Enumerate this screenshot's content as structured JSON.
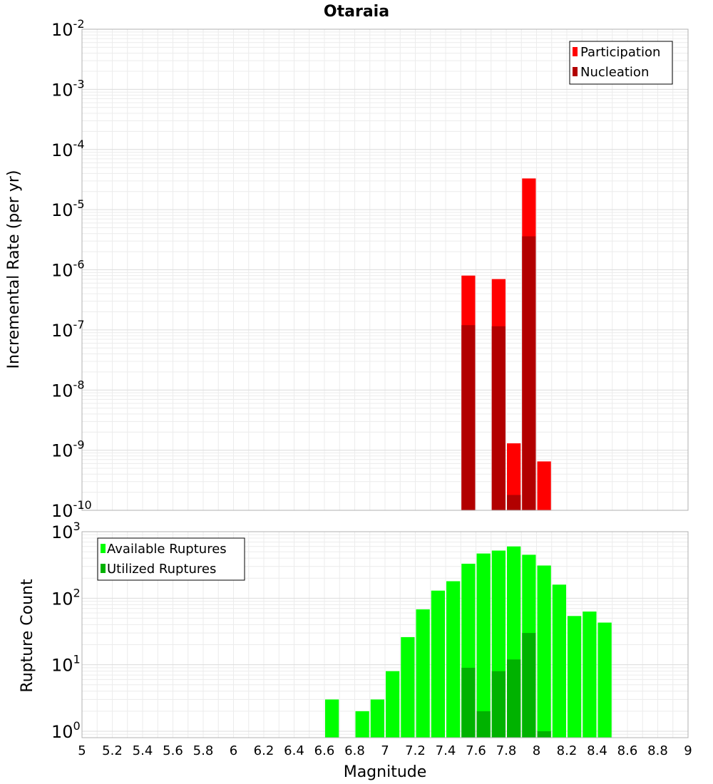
{
  "chart_data": [
    {
      "type": "bar",
      "title": "Otaraia",
      "ylabel": "Incremental Rate (per yr)",
      "xlabel": "",
      "yscale": "log",
      "ylim": [
        1e-10,
        0.01
      ],
      "xlim": [
        5,
        9
      ],
      "grid": true,
      "legend_position": "top-right",
      "bin_width": 0.1,
      "yticks": [
        {
          "base": "10",
          "exp": "-2"
        },
        {
          "base": "10",
          "exp": "-3"
        },
        {
          "base": "10",
          "exp": "-4"
        },
        {
          "base": "10",
          "exp": "-5"
        },
        {
          "base": "10",
          "exp": "-6"
        },
        {
          "base": "10",
          "exp": "-7"
        },
        {
          "base": "10",
          "exp": "-8"
        },
        {
          "base": "10",
          "exp": "-9"
        },
        {
          "base": "10",
          "exp": "-10"
        }
      ],
      "series": [
        {
          "name": "Participation",
          "color": "#ff0000",
          "x": [
            7.55,
            7.75,
            7.85,
            7.95,
            8.05
          ],
          "values": [
            8e-07,
            7e-07,
            1.3e-09,
            3.3e-05,
            6.5e-10
          ]
        },
        {
          "name": "Nucleation",
          "color": "#b20000",
          "x": [
            7.55,
            7.75,
            7.85,
            7.95
          ],
          "values": [
            1.2e-07,
            1.15e-07,
            1.8e-10,
            3.6e-06
          ]
        }
      ]
    },
    {
      "type": "bar",
      "xlabel": "Magnitude",
      "ylabel": "Rupture Count",
      "yscale": "log",
      "ylim": [
        0.8,
        1000
      ],
      "xlim": [
        5,
        9
      ],
      "grid": true,
      "legend_position": "top-left",
      "bin_width": 0.1,
      "xticks": [
        "5",
        "5.2",
        "5.4",
        "5.6",
        "5.8",
        "6",
        "6.2",
        "6.4",
        "6.6",
        "6.8",
        "7",
        "7.2",
        "7.4",
        "7.6",
        "7.8",
        "8",
        "8.2",
        "8.4",
        "8.6",
        "8.8",
        "9"
      ],
      "yticks": [
        {
          "base": "10",
          "exp": "3"
        },
        {
          "base": "10",
          "exp": "2"
        },
        {
          "base": "10",
          "exp": "1"
        },
        {
          "base": "10",
          "exp": "0"
        }
      ],
      "series": [
        {
          "name": "Available Ruptures",
          "color": "#00ff00",
          "x": [
            6.65,
            6.85,
            6.95,
            7.05,
            7.15,
            7.25,
            7.35,
            7.45,
            7.55,
            7.65,
            7.75,
            7.85,
            7.95,
            8.05,
            8.15,
            8.25,
            8.35,
            8.45
          ],
          "values": [
            3,
            2,
            3,
            8,
            26,
            68,
            130,
            180,
            330,
            470,
            520,
            600,
            450,
            310,
            160,
            54,
            63,
            43
          ]
        },
        {
          "name": "Utilized Ruptures",
          "color": "#00b200",
          "x": [
            7.55,
            7.65,
            7.75,
            7.85,
            7.95,
            8.05
          ],
          "values": [
            9,
            2,
            8,
            12,
            30,
            1
          ]
        }
      ]
    }
  ]
}
